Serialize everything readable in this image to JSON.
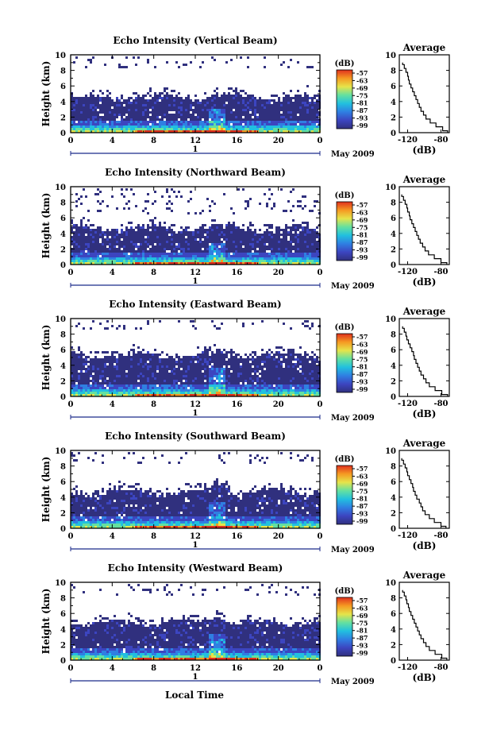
{
  "figure": {
    "xlabel": "Local Time",
    "date_label": "May 2009",
    "day_label": "1",
    "ylabel": "Height (km)",
    "colorbar_label": "(dB)",
    "avg_title": "Average",
    "avg_xlabel": "(dB)"
  },
  "colors": {
    "scale": [
      "#30307e",
      "#3c45c0",
      "#2f7fe2",
      "#21c0df",
      "#64e0a0",
      "#e6e44a",
      "#f59a22",
      "#e0301e"
    ],
    "background": "#ffffff"
  },
  "chart_data": [
    {
      "type": "heatmap",
      "title": "Echo Intensity (Vertical Beam)",
      "xlabel": "Local Time",
      "ylabel": "Height (km)",
      "xlim": [
        0,
        24
      ],
      "ylim": [
        0,
        10
      ],
      "xticks": [
        "0",
        "4",
        "8",
        "12",
        "16",
        "20",
        "0"
      ],
      "yticks": [
        "0",
        "2",
        "4",
        "6",
        "8",
        "10"
      ],
      "colorbar": {
        "label": "(dB)",
        "ticks": [
          "-57",
          "-63",
          "-69",
          "-75",
          "-81",
          "-87",
          "-93",
          "-99"
        ]
      },
      "echo_top_km": 4.7,
      "convective_burst": {
        "time_h": 14,
        "top_km": 4.5
      },
      "sparse_high_echo_km": [
        8.3,
        9.8
      ],
      "average_profile": {
        "title": "Average",
        "xlabel": "(dB)",
        "xticks": [
          "-120",
          "-80"
        ],
        "xlim": [
          -130,
          -70
        ],
        "ylim": [
          0,
          10
        ],
        "height_km": [
          0,
          0.5,
          1,
          1.5,
          2,
          2.5,
          3,
          3.5,
          4,
          4.5,
          5,
          5.5,
          6,
          6.5,
          7,
          7.5,
          8,
          8.5,
          9
        ],
        "intensity_db": [
          -72,
          -78,
          -86,
          -93,
          -98,
          -101,
          -104,
          -106,
          -108,
          -110,
          -112,
          -114,
          -116,
          -118,
          -119,
          -120,
          -122,
          -124,
          -126
        ]
      }
    },
    {
      "type": "heatmap",
      "title": "Echo Intensity (Northward Beam)",
      "xlabel": "Local Time",
      "ylabel": "Height (km)",
      "xlim": [
        0,
        24
      ],
      "ylim": [
        0,
        10
      ],
      "xticks": [
        "0",
        "4",
        "8",
        "12",
        "16",
        "20",
        "0"
      ],
      "yticks": [
        "0",
        "2",
        "4",
        "6",
        "8",
        "10"
      ],
      "colorbar": {
        "label": "(dB)",
        "ticks": [
          "-57",
          "-63",
          "-69",
          "-75",
          "-81",
          "-87",
          "-93",
          "-99"
        ]
      },
      "echo_top_km": 4.8,
      "convective_burst": {
        "time_h": 14,
        "top_km": 4.0
      },
      "sparse_high_echo_km": [
        6.5,
        9.8
      ],
      "average_profile": {
        "title": "Average",
        "xlabel": "(dB)",
        "xticks": [
          "-120",
          "-80"
        ],
        "xlim": [
          -130,
          -70
        ],
        "ylim": [
          0,
          10
        ],
        "height_km": [
          0,
          0.5,
          1,
          1.5,
          2,
          2.5,
          3,
          3.5,
          4,
          4.5,
          5,
          5.5,
          6,
          6.5,
          7,
          7.5,
          8,
          8.5,
          9
        ],
        "intensity_db": [
          -73,
          -80,
          -88,
          -95,
          -99,
          -102,
          -105,
          -107,
          -109,
          -111,
          -113,
          -115,
          -117,
          -118,
          -120,
          -121,
          -123,
          -125,
          -127
        ]
      }
    },
    {
      "type": "heatmap",
      "title": "Echo Intensity (Eastward Beam)",
      "xlabel": "Local Time",
      "ylabel": "Height (km)",
      "xlim": [
        0,
        24
      ],
      "ylim": [
        0,
        10
      ],
      "xticks": [
        "0",
        "4",
        "8",
        "12",
        "16",
        "20",
        "0"
      ],
      "yticks": [
        "0",
        "2",
        "4",
        "6",
        "8",
        "10"
      ],
      "colorbar": {
        "label": "(dB)",
        "ticks": [
          "-57",
          "-63",
          "-69",
          "-75",
          "-81",
          "-87",
          "-93",
          "-99"
        ]
      },
      "echo_top_km": 5.5,
      "convective_burst": {
        "time_h": 14,
        "top_km": 5.5
      },
      "sparse_high_echo_km": [
        8.8,
        9.8
      ],
      "average_profile": {
        "title": "Average",
        "xlabel": "(dB)",
        "xticks": [
          "-120",
          "-80"
        ],
        "xlim": [
          -130,
          -70
        ],
        "ylim": [
          0,
          10
        ],
        "height_km": [
          0,
          0.5,
          1,
          1.5,
          2,
          2.5,
          3,
          3.5,
          4,
          4.5,
          5,
          5.5,
          6,
          6.5,
          7,
          7.5,
          8,
          8.5,
          9
        ],
        "intensity_db": [
          -72,
          -79,
          -87,
          -94,
          -98,
          -101,
          -104,
          -106,
          -108,
          -110,
          -112,
          -113,
          -115,
          -117,
          -119,
          -121,
          -122,
          -124,
          -126
        ]
      }
    },
    {
      "type": "heatmap",
      "title": "Echo Intensity (Southward Beam)",
      "xlabel": "Local Time",
      "ylabel": "Height (km)",
      "xlim": [
        0,
        24
      ],
      "ylim": [
        0,
        10
      ],
      "xticks": [
        "0",
        "4",
        "8",
        "12",
        "16",
        "20",
        "0"
      ],
      "yticks": [
        "0",
        "2",
        "4",
        "6",
        "8",
        "10"
      ],
      "colorbar": {
        "label": "(dB)",
        "ticks": [
          "-57",
          "-63",
          "-69",
          "-75",
          "-81",
          "-87",
          "-93",
          "-99"
        ]
      },
      "echo_top_km": 4.8,
      "convective_burst": {
        "time_h": 14,
        "top_km": 5.2
      },
      "sparse_high_echo_km": [
        8.3,
        9.8
      ],
      "average_profile": {
        "title": "Average",
        "xlabel": "(dB)",
        "xticks": [
          "-120",
          "-80"
        ],
        "xlim": [
          -130,
          -70
        ],
        "ylim": [
          0,
          10
        ],
        "height_km": [
          0,
          0.5,
          1,
          1.5,
          2,
          2.5,
          3,
          3.5,
          4,
          4.5,
          5,
          5.5,
          6,
          6.5,
          7,
          7.5,
          8,
          8.5,
          9
        ],
        "intensity_db": [
          -74,
          -80,
          -88,
          -94,
          -99,
          -102,
          -104,
          -106,
          -109,
          -111,
          -113,
          -114,
          -116,
          -118,
          -120,
          -121,
          -123,
          -125,
          -127
        ]
      }
    },
    {
      "type": "heatmap",
      "title": "Echo Intensity (Westward Beam)",
      "xlabel": "Local Time",
      "ylabel": "Height (km)",
      "xlim": [
        0,
        24
      ],
      "ylim": [
        0,
        10
      ],
      "xticks": [
        "0",
        "4",
        "8",
        "12",
        "16",
        "20",
        "0"
      ],
      "yticks": [
        "0",
        "2",
        "4",
        "6",
        "8",
        "10"
      ],
      "colorbar": {
        "label": "(dB)",
        "ticks": [
          "-57",
          "-63",
          "-69",
          "-75",
          "-81",
          "-87",
          "-93",
          "-99"
        ]
      },
      "echo_top_km": 5.0,
      "convective_burst": {
        "time_h": 14,
        "top_km": 5.0
      },
      "sparse_high_echo_km": [
        8.5,
        9.9
      ],
      "average_profile": {
        "title": "Average",
        "xlabel": "(dB)",
        "xticks": [
          "-120",
          "-80"
        ],
        "xlim": [
          -130,
          -70
        ],
        "ylim": [
          0,
          10
        ],
        "height_km": [
          0,
          0.5,
          1,
          1.5,
          2,
          2.5,
          3,
          3.5,
          4,
          4.5,
          5,
          5.5,
          6,
          6.5,
          7,
          7.5,
          8,
          8.5,
          9
        ],
        "intensity_db": [
          -73,
          -79,
          -87,
          -94,
          -98,
          -101,
          -104,
          -106,
          -108,
          -110,
          -112,
          -114,
          -116,
          -118,
          -119,
          -121,
          -122,
          -124,
          -126
        ]
      }
    }
  ]
}
